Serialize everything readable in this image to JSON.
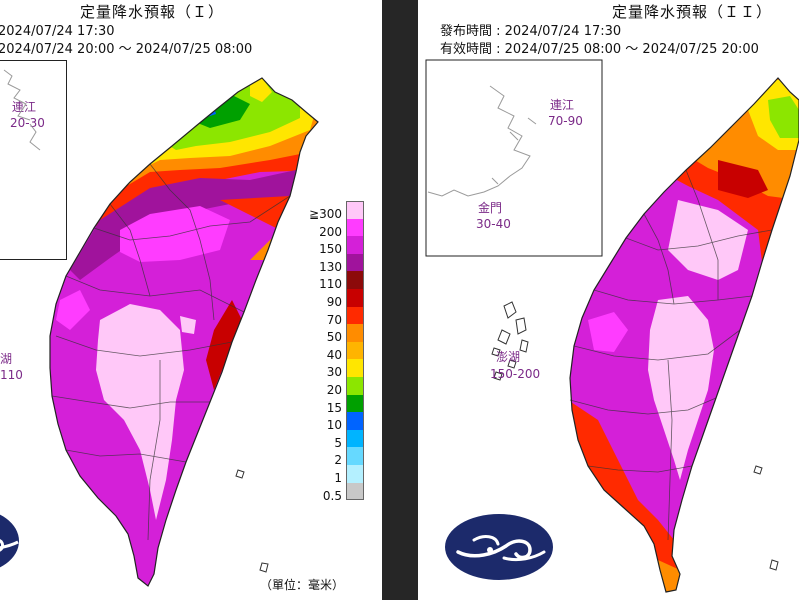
{
  "left_panel": {
    "title": "定量降水預報（Ｉ）",
    "issue_time": "2024/07/24 17:30",
    "valid_time": "2024/07/24 20:00 ～ 2024/07/25 08:00",
    "matsu_label": "連江",
    "matsu_range": "20-30",
    "penghu_label": "湖",
    "penghu_range": "110",
    "unit_label": "（單位：毫米）"
  },
  "right_panel": {
    "title": "定量降水預報（ＩＩ）",
    "issue_time": "發布時間 : 2024/07/24 17:30",
    "valid_time": "有效時間 : 2024/07/25 08:00 ～ 2024/07/25 20:00",
    "matsu_label": "連江",
    "matsu_range": "70-90",
    "kinmen_label": "金門",
    "kinmen_range": "30-40",
    "penghu_label": "澎湖",
    "penghu_range": "150-200"
  },
  "legend": [
    {
      "label": "≧300",
      "color": "#ffc8f8"
    },
    {
      "label": "200",
      "color": "#ff3cff"
    },
    {
      "label": "150",
      "color": "#d420d8"
    },
    {
      "label": "130",
      "color": "#a0139c"
    },
    {
      "label": "110",
      "color": "#8c0a0a"
    },
    {
      "label": "90",
      "color": "#c80000"
    },
    {
      "label": "70",
      "color": "#ff2a00"
    },
    {
      "label": "50",
      "color": "#ff8c00"
    },
    {
      "label": "40",
      "color": "#ffb400"
    },
    {
      "label": "30",
      "color": "#ffe600"
    },
    {
      "label": "20",
      "color": "#8ce600"
    },
    {
      "label": "15",
      "color": "#00a000"
    },
    {
      "label": "10",
      "color": "#0064ff"
    },
    {
      "label": "5",
      "color": "#00b4ff"
    },
    {
      "label": "2",
      "color": "#66d9ff"
    },
    {
      "label": "1",
      "color": "#b4f0ff"
    },
    {
      "label": "0.5",
      "color": "#c8c8c8"
    }
  ]
}
